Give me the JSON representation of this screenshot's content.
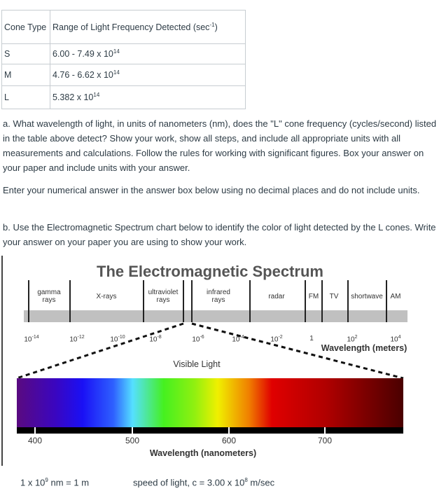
{
  "table": {
    "headers": [
      "Cone Type",
      "Range of Light Frequency Detected (sec",
      "-1",
      ")"
    ],
    "rows": [
      {
        "type": "S",
        "value": "6.00 - 7.49 x 10",
        "exp": "14"
      },
      {
        "type": "M",
        "value": "4.76 - 6.62 x 10",
        "exp": "14"
      },
      {
        "type": "L",
        "value": "5.382 x 10",
        "exp": "14"
      }
    ]
  },
  "question_a": "a. What wavelength of light, in units of nanometers (nm), does the \"L\" cone frequency (cycles/second) listed in the table above detect? Show your work, show all steps, and include all appropriate units with all measurements and calculations. Follow the rules for working with significant figures. Box your answer on your paper and include units with your answer.",
  "instructions": "Enter your numerical answer in the answer box below using no decimal places and do not include units.",
  "question_b": "b. Use the Electromagnetic Spectrum chart below to identify the color of light detected by the L cones.  Write your answer on your paper you are using to show your work.",
  "figure": {
    "title": "The Electromagnetic Spectrum",
    "bands": [
      "gamma rays",
      "X-rays",
      "ultraviolet rays",
      "infrared rays",
      "radar",
      "FM",
      "TV",
      "shortwave",
      "AM"
    ],
    "exponents": [
      "10-14",
      "10-12",
      "10-10",
      "10-8",
      "10-6",
      "10-4",
      "10-2",
      "1",
      "102",
      "104"
    ],
    "meters_label": "Wavelength (meters)",
    "visible_label": "Visible Light",
    "nm_ticks": [
      "400",
      "500",
      "600",
      "700"
    ],
    "nm_label": "Wavelength (nanometers)"
  },
  "footer": {
    "conv_a": "1 x 10",
    "conv_exp": "9",
    "conv_b": " nm = 1 m",
    "speed_a": "speed of light, c = 3.00 x 10",
    "speed_exp": "8",
    "speed_b": " m/sec"
  }
}
